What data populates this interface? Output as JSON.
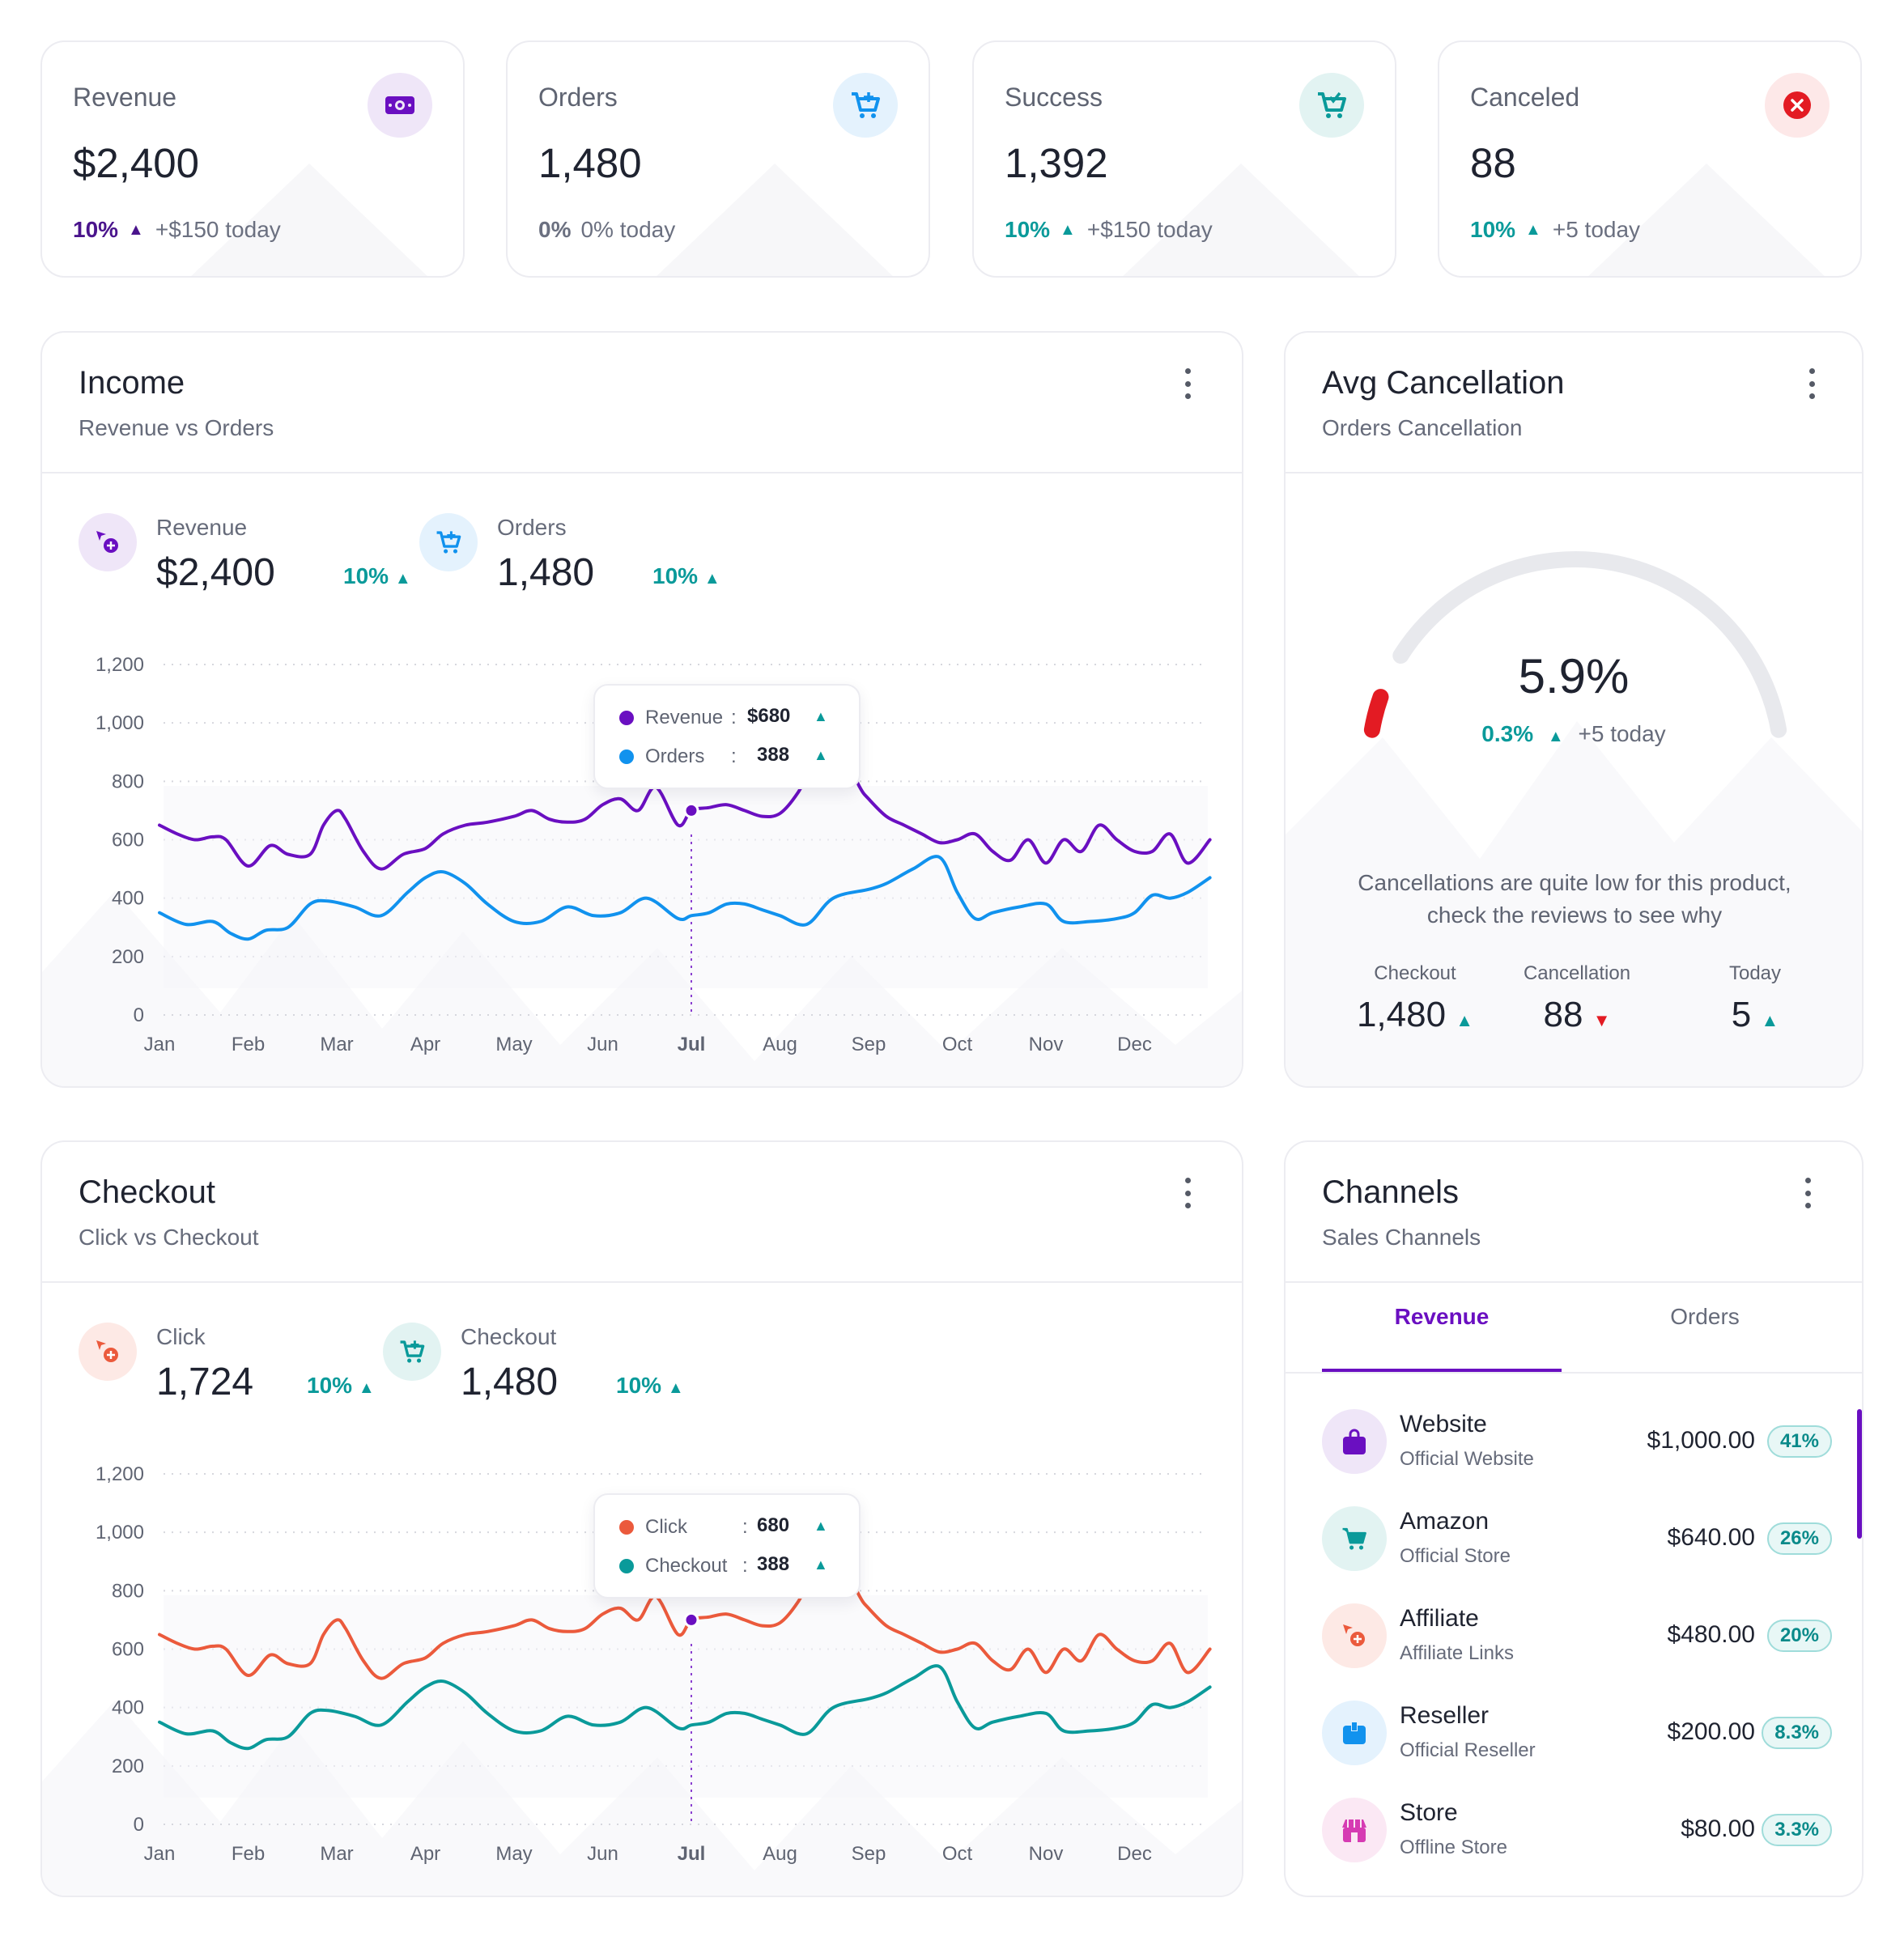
{
  "stats": [
    {
      "label": "Revenue",
      "value": "$2,400",
      "pct": "10%",
      "note": "+$150 today",
      "icon": "money-icon",
      "accent": "#5b17a8",
      "icon_bg": "#efe6f8",
      "icon_color": "#6a0fc1"
    },
    {
      "label": "Orders",
      "value": "1,480",
      "pct": "0%",
      "note": "0% today",
      "icon": "cart-plus-icon",
      "accent": "#6b7080",
      "icon_bg": "#e4f2fd",
      "icon_color": "#1192ee"
    },
    {
      "label": "Success",
      "value": "1,392",
      "pct": "10%",
      "note": "+$150 today",
      "icon": "cart-check-icon",
      "accent": "#0a9a9a",
      "icon_bg": "#e2f3f2",
      "icon_color": "#0a9a9a"
    },
    {
      "label": "Canceled",
      "value": "88",
      "pct": "10%",
      "note": "+5 today",
      "icon": "close-circle-icon",
      "accent": "#0a9a9a",
      "icon_bg": "#fde8e8",
      "icon_color": "#e31b23"
    }
  ],
  "income": {
    "title": "Income",
    "subtitle": "Revenue vs Orders",
    "legend": [
      {
        "name": "Revenue",
        "value": "$2,400",
        "pct": "10%"
      },
      {
        "name": "Orders",
        "value": "1,480",
        "pct": "10%"
      }
    ],
    "tooltip": [
      {
        "name": "Revenue",
        "sep": ":",
        "value": "$680"
      },
      {
        "name": "Orders",
        "sep": ":",
        "value": "388"
      }
    ]
  },
  "checkout": {
    "title": "Checkout",
    "subtitle": "Click vs Checkout",
    "legend": [
      {
        "name": "Click",
        "value": "1,724",
        "pct": "10%"
      },
      {
        "name": "Checkout",
        "value": "1,480",
        "pct": "10%"
      }
    ],
    "tooltip": [
      {
        "name": "Click",
        "sep": ":",
        "value": "680"
      },
      {
        "name": "Checkout",
        "sep": ":",
        "value": "388"
      }
    ]
  },
  "avg_cancellation": {
    "title": "Avg Cancellation",
    "subtitle": "Orders Cancellation",
    "value": "5.9%",
    "value_fraction": 0.059,
    "pct": "0.3%",
    "note": "+5 today",
    "message_line1": "Cancellations are quite low for this product,",
    "message_line2": "check the reviews to see why",
    "stats": [
      {
        "label": "Checkout",
        "value": "1,480",
        "dir": "up"
      },
      {
        "label": "Cancellation",
        "value": "88",
        "dir": "down"
      },
      {
        "label": "Today",
        "value": "5",
        "dir": "up"
      }
    ]
  },
  "channels": {
    "title": "Channels",
    "subtitle": "Sales Channels",
    "tabs": [
      "Revenue",
      "Orders"
    ],
    "active_tab": "Revenue",
    "items": [
      {
        "name": "Website",
        "sub": "Official Website",
        "amount": "$1,000.00",
        "pct": "41%",
        "icon": "shopping-bag-icon",
        "icon_bg": "#efe6f8",
        "icon_color": "#6a0fc1"
      },
      {
        "name": "Amazon",
        "sub": "Official Store",
        "amount": "$640.00",
        "pct": "26%",
        "icon": "cart-icon",
        "icon_bg": "#e2f3f2",
        "icon_color": "#0a9a9a"
      },
      {
        "name": "Affiliate",
        "sub": "Affiliate Links",
        "amount": "$480.00",
        "pct": "20%",
        "icon": "cursor-plus-icon",
        "icon_bg": "#fde9e5",
        "icon_color": "#eb5a3c"
      },
      {
        "name": "Reseller",
        "sub": "Official Reseller",
        "amount": "$200.00",
        "pct": "8.3%",
        "icon": "box-icon",
        "icon_bg": "#e4f2fd",
        "icon_color": "#1192ee"
      },
      {
        "name": "Store",
        "sub": "Offline Store",
        "amount": "$80.00",
        "pct": "3.3%",
        "icon": "storefront-icon",
        "icon_bg": "#fbe8f4",
        "icon_color": "#d63bb3"
      }
    ]
  },
  "chart_data": [
    {
      "type": "line",
      "title": "Income",
      "x": [
        "Jan",
        "Feb",
        "Mar",
        "Apr",
        "May",
        "Jun",
        "Jul",
        "Aug",
        "Sep",
        "Oct",
        "Nov",
        "Dec"
      ],
      "highlight_x": "Jul",
      "ylim": [
        0,
        1200
      ],
      "yticks": [
        "0",
        "200",
        "400",
        "600",
        "800",
        "1,000",
        "1,200"
      ],
      "grid": true,
      "series": [
        {
          "name": "Revenue",
          "color": "#6a0fc1",
          "x": [
            0,
            0.2,
            0.4,
            0.6,
            0.75,
            1.0,
            1.25,
            1.45,
            1.7,
            1.85,
            2.0,
            2.1,
            2.3,
            2.5,
            2.75,
            3.0,
            3.2,
            3.45,
            3.7,
            4.0,
            4.2,
            4.4,
            4.6,
            4.8,
            5.0,
            5.2,
            5.4,
            5.6,
            5.85,
            6.0,
            6.2,
            6.4,
            6.6,
            6.8,
            7.0,
            7.2,
            7.4,
            7.55,
            7.7,
            7.9,
            8.0,
            8.2,
            8.4,
            8.6,
            8.8,
            9.0,
            9.2,
            9.4,
            9.6,
            9.8,
            10.0,
            10.2,
            10.4,
            10.6,
            10.8,
            11.0,
            11.2,
            11.4,
            11.6,
            11.85
          ],
          "y": [
            650,
            620,
            600,
            610,
            600,
            510,
            580,
            550,
            550,
            650,
            700,
            670,
            560,
            500,
            550,
            570,
            620,
            650,
            660,
            680,
            700,
            670,
            660,
            670,
            720,
            740,
            700,
            780,
            650,
            700,
            710,
            720,
            700,
            680,
            690,
            760,
            870,
            920,
            900,
            780,
            740,
            680,
            650,
            620,
            590,
            600,
            620,
            560,
            530,
            600,
            520,
            600,
            560,
            650,
            600,
            560,
            560,
            620,
            520,
            600
          ]
        },
        {
          "name": "Orders",
          "color": "#1192ee",
          "x": [
            0,
            0.3,
            0.6,
            0.8,
            1.0,
            1.2,
            1.45,
            1.7,
            1.9,
            2.2,
            2.5,
            2.8,
            3.0,
            3.2,
            3.45,
            3.7,
            4.0,
            4.3,
            4.6,
            4.9,
            5.2,
            5.5,
            5.85,
            6.0,
            6.2,
            6.4,
            6.6,
            6.8,
            7.0,
            7.3,
            7.6,
            8.0,
            8.2,
            8.5,
            8.8,
            9.0,
            9.2,
            9.4,
            9.7,
            10.0,
            10.2,
            10.5,
            10.8,
            11.0,
            11.2,
            11.4,
            11.6,
            11.85
          ],
          "y": [
            350,
            310,
            320,
            280,
            260,
            290,
            300,
            380,
            390,
            370,
            340,
            420,
            470,
            490,
            450,
            380,
            320,
            320,
            370,
            340,
            350,
            400,
            330,
            340,
            350,
            380,
            380,
            360,
            340,
            310,
            400,
            430,
            450,
            500,
            540,
            420,
            330,
            350,
            370,
            380,
            320,
            320,
            330,
            350,
            410,
            400,
            420,
            470
          ]
        }
      ]
    },
    {
      "type": "line",
      "title": "Checkout",
      "x": [
        "Jan",
        "Feb",
        "Mar",
        "Apr",
        "May",
        "Jun",
        "Jul",
        "Aug",
        "Sep",
        "Oct",
        "Nov",
        "Dec"
      ],
      "highlight_x": "Jul",
      "ylim": [
        0,
        1200
      ],
      "yticks": [
        "0",
        "200",
        "400",
        "600",
        "800",
        "1,000",
        "1,200"
      ],
      "grid": true,
      "series": [
        {
          "name": "Click",
          "color": "#eb5a3c",
          "x": [
            0,
            0.2,
            0.4,
            0.6,
            0.75,
            1.0,
            1.25,
            1.45,
            1.7,
            1.85,
            2.0,
            2.1,
            2.3,
            2.5,
            2.75,
            3.0,
            3.2,
            3.45,
            3.7,
            4.0,
            4.2,
            4.4,
            4.6,
            4.8,
            5.0,
            5.2,
            5.4,
            5.6,
            5.85,
            6.0,
            6.2,
            6.4,
            6.6,
            6.8,
            7.0,
            7.2,
            7.4,
            7.55,
            7.7,
            7.9,
            8.0,
            8.2,
            8.4,
            8.6,
            8.8,
            9.0,
            9.2,
            9.4,
            9.6,
            9.8,
            10.0,
            10.2,
            10.4,
            10.6,
            10.8,
            11.0,
            11.2,
            11.4,
            11.6,
            11.85
          ],
          "y": [
            650,
            620,
            600,
            610,
            600,
            510,
            580,
            550,
            550,
            650,
            700,
            670,
            560,
            500,
            550,
            570,
            620,
            650,
            660,
            680,
            700,
            670,
            660,
            670,
            720,
            740,
            700,
            780,
            650,
            700,
            710,
            720,
            700,
            680,
            690,
            760,
            870,
            920,
            900,
            780,
            740,
            680,
            650,
            620,
            590,
            600,
            620,
            560,
            530,
            600,
            520,
            600,
            560,
            650,
            600,
            560,
            560,
            620,
            520,
            600
          ]
        },
        {
          "name": "Checkout",
          "color": "#0a9a9a",
          "x": [
            0,
            0.3,
            0.6,
            0.8,
            1.0,
            1.2,
            1.45,
            1.7,
            1.9,
            2.2,
            2.5,
            2.8,
            3.0,
            3.2,
            3.45,
            3.7,
            4.0,
            4.3,
            4.6,
            4.9,
            5.2,
            5.5,
            5.85,
            6.0,
            6.2,
            6.4,
            6.6,
            6.8,
            7.0,
            7.3,
            7.6,
            8.0,
            8.2,
            8.5,
            8.8,
            9.0,
            9.2,
            9.4,
            9.7,
            10.0,
            10.2,
            10.5,
            10.8,
            11.0,
            11.2,
            11.4,
            11.6,
            11.85
          ],
          "y": [
            350,
            310,
            320,
            280,
            260,
            290,
            300,
            380,
            390,
            370,
            340,
            420,
            470,
            490,
            450,
            380,
            320,
            320,
            370,
            340,
            350,
            400,
            330,
            340,
            350,
            380,
            380,
            360,
            340,
            310,
            400,
            430,
            450,
            500,
            540,
            420,
            330,
            350,
            370,
            380,
            320,
            320,
            330,
            350,
            410,
            400,
            420,
            470
          ]
        }
      ]
    }
  ]
}
